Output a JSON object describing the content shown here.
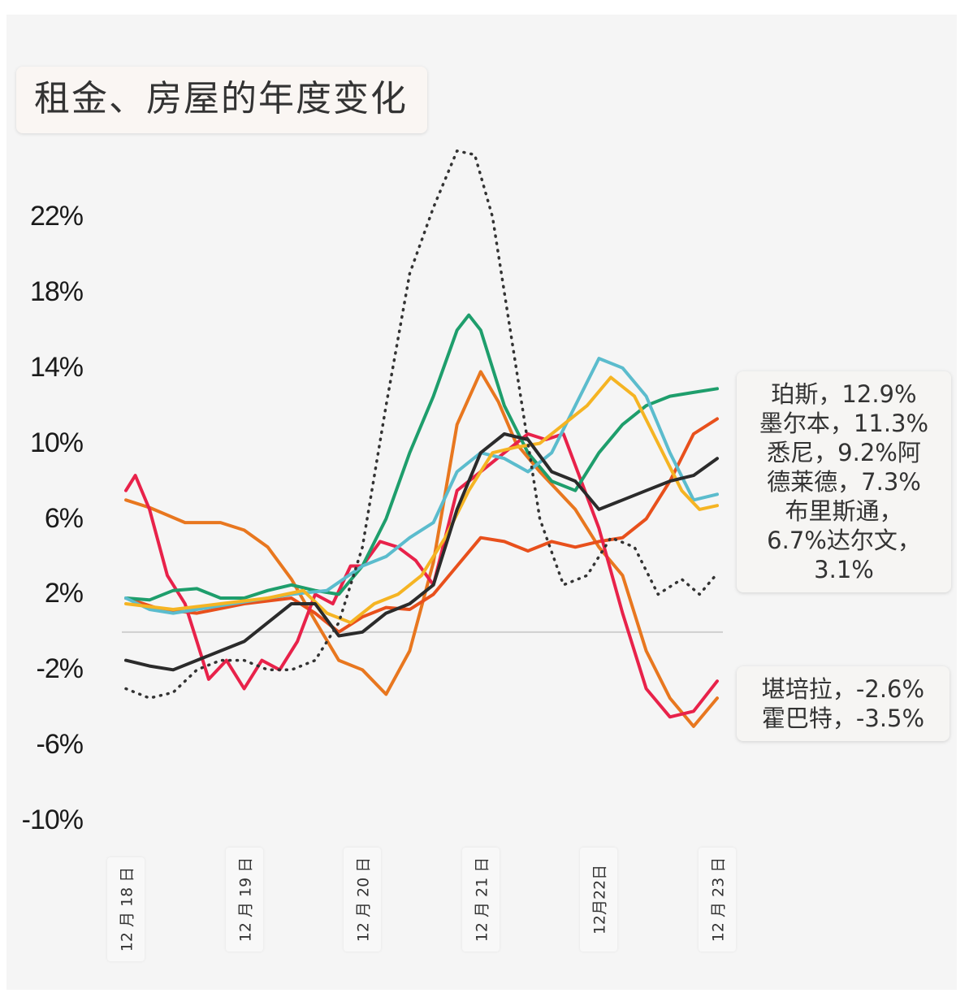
{
  "chart_data": {
    "type": "line",
    "title": "租金、房屋的年度变化",
    "ylabel": "",
    "xlabel": "",
    "ylim": [
      -10,
      26
    ],
    "x_ticks": [
      "12 月 18 日",
      "12 月 19 日",
      "12 月 20 日",
      "12 月 21 日",
      "12月22日",
      "12 月 23 日"
    ],
    "y_ticks": [
      "22%",
      "18%",
      "14%",
      "10%",
      "6%",
      "2%",
      "-2%",
      "-6%",
      "-10%"
    ],
    "y_tick_values": [
      22,
      18,
      14,
      10,
      6,
      2,
      -2,
      -6,
      -10
    ],
    "x_range": [
      2018.0,
      2023.0
    ],
    "grid": false,
    "zero_line": true,
    "series": [
      {
        "color": "#e8771f",
        "style": "solid",
        "points": [
          [
            2018.0,
            7.0
          ],
          [
            2018.2,
            6.6
          ],
          [
            2018.5,
            5.8
          ],
          [
            2018.8,
            5.8
          ],
          [
            2019.0,
            5.4
          ],
          [
            2019.2,
            4.5
          ],
          [
            2019.4,
            2.8
          ],
          [
            2019.6,
            0.6
          ],
          [
            2019.8,
            -1.5
          ],
          [
            2020.0,
            -2.0
          ],
          [
            2020.2,
            -3.3
          ],
          [
            2020.4,
            -1.0
          ],
          [
            2020.6,
            3.7
          ],
          [
            2020.8,
            11.0
          ],
          [
            2021.0,
            13.8
          ],
          [
            2021.15,
            12.2
          ],
          [
            2021.3,
            10.0
          ],
          [
            2021.5,
            8.5
          ],
          [
            2021.8,
            6.5
          ],
          [
            2022.0,
            4.5
          ],
          [
            2022.2,
            3.0
          ],
          [
            2022.4,
            -1.0
          ],
          [
            2022.6,
            -3.5
          ],
          [
            2022.8,
            -5.0
          ],
          [
            2023.0,
            -3.5
          ]
        ]
      },
      {
        "color": "#e8501c",
        "style": "solid",
        "points": [
          [
            2018.0,
            1.8
          ],
          [
            2018.3,
            1.2
          ],
          [
            2018.6,
            1.0
          ],
          [
            2019.0,
            1.5
          ],
          [
            2019.4,
            1.8
          ],
          [
            2019.6,
            1.0
          ],
          [
            2019.8,
            0.0
          ],
          [
            2020.0,
            0.8
          ],
          [
            2020.2,
            1.3
          ],
          [
            2020.4,
            1.2
          ],
          [
            2020.6,
            2.0
          ],
          [
            2020.8,
            3.5
          ],
          [
            2021.0,
            5.0
          ],
          [
            2021.2,
            4.8
          ],
          [
            2021.4,
            4.3
          ],
          [
            2021.6,
            4.8
          ],
          [
            2021.8,
            4.5
          ],
          [
            2022.0,
            4.8
          ],
          [
            2022.2,
            5.0
          ],
          [
            2022.4,
            6.0
          ],
          [
            2022.6,
            8.0
          ],
          [
            2022.8,
            10.5
          ],
          [
            2023.0,
            11.3
          ]
        ]
      },
      {
        "color": "#e8224a",
        "style": "solid",
        "points": [
          [
            2018.0,
            7.5
          ],
          [
            2018.08,
            8.3
          ],
          [
            2018.2,
            6.5
          ],
          [
            2018.35,
            3.0
          ],
          [
            2018.5,
            1.5
          ],
          [
            2018.6,
            -0.5
          ],
          [
            2018.7,
            -2.5
          ],
          [
            2018.85,
            -1.5
          ],
          [
            2019.0,
            -3.0
          ],
          [
            2019.15,
            -1.5
          ],
          [
            2019.3,
            -2.0
          ],
          [
            2019.45,
            -0.5
          ],
          [
            2019.6,
            2.0
          ],
          [
            2019.75,
            1.5
          ],
          [
            2019.9,
            3.5
          ],
          [
            2020.0,
            3.5
          ],
          [
            2020.15,
            4.8
          ],
          [
            2020.3,
            4.5
          ],
          [
            2020.45,
            3.8
          ],
          [
            2020.6,
            2.5
          ],
          [
            2020.8,
            7.5
          ],
          [
            2021.0,
            8.5
          ],
          [
            2021.2,
            9.5
          ],
          [
            2021.4,
            10.5
          ],
          [
            2021.55,
            10.2
          ],
          [
            2021.7,
            10.5
          ],
          [
            2021.85,
            8.0
          ],
          [
            2022.0,
            5.5
          ],
          [
            2022.2,
            1.0
          ],
          [
            2022.4,
            -3.0
          ],
          [
            2022.6,
            -4.5
          ],
          [
            2022.8,
            -4.2
          ],
          [
            2023.0,
            -2.6
          ]
        ]
      },
      {
        "color": "#1e9e6c",
        "style": "solid",
        "points": [
          [
            2018.0,
            1.8
          ],
          [
            2018.2,
            1.7
          ],
          [
            2018.4,
            2.2
          ],
          [
            2018.6,
            2.3
          ],
          [
            2018.8,
            1.8
          ],
          [
            2019.0,
            1.8
          ],
          [
            2019.2,
            2.2
          ],
          [
            2019.4,
            2.5
          ],
          [
            2019.6,
            2.2
          ],
          [
            2019.8,
            2.0
          ],
          [
            2020.0,
            3.5
          ],
          [
            2020.2,
            6.0
          ],
          [
            2020.4,
            9.5
          ],
          [
            2020.6,
            12.5
          ],
          [
            2020.8,
            16.0
          ],
          [
            2020.9,
            16.8
          ],
          [
            2021.0,
            16.0
          ],
          [
            2021.2,
            12.0
          ],
          [
            2021.4,
            9.5
          ],
          [
            2021.6,
            8.0
          ],
          [
            2021.8,
            7.5
          ],
          [
            2022.0,
            9.5
          ],
          [
            2022.2,
            11.0
          ],
          [
            2022.4,
            12.0
          ],
          [
            2022.6,
            12.5
          ],
          [
            2022.8,
            12.7
          ],
          [
            2023.0,
            12.9
          ]
        ]
      },
      {
        "color": "#5bbccd",
        "style": "solid",
        "points": [
          [
            2018.0,
            1.8
          ],
          [
            2018.2,
            1.2
          ],
          [
            2018.4,
            1.0
          ],
          [
            2018.6,
            1.2
          ],
          [
            2019.0,
            1.6
          ],
          [
            2019.4,
            2.0
          ],
          [
            2019.7,
            2.2
          ],
          [
            2020.0,
            3.5
          ],
          [
            2020.2,
            4.0
          ],
          [
            2020.4,
            5.0
          ],
          [
            2020.6,
            5.8
          ],
          [
            2020.8,
            8.5
          ],
          [
            2021.0,
            9.5
          ],
          [
            2021.2,
            9.2
          ],
          [
            2021.4,
            8.5
          ],
          [
            2021.6,
            9.5
          ],
          [
            2021.8,
            12.0
          ],
          [
            2022.0,
            14.5
          ],
          [
            2022.2,
            14.0
          ],
          [
            2022.4,
            12.5
          ],
          [
            2022.6,
            9.5
          ],
          [
            2022.8,
            7.0
          ],
          [
            2023.0,
            7.3
          ]
        ]
      },
      {
        "color": "#f5b423",
        "style": "solid",
        "points": [
          [
            2018.0,
            1.5
          ],
          [
            2018.4,
            1.2
          ],
          [
            2018.8,
            1.5
          ],
          [
            2019.2,
            1.8
          ],
          [
            2019.5,
            2.2
          ],
          [
            2019.7,
            1.0
          ],
          [
            2019.9,
            0.5
          ],
          [
            2020.1,
            1.5
          ],
          [
            2020.3,
            2.0
          ],
          [
            2020.5,
            3.0
          ],
          [
            2020.7,
            5.0
          ],
          [
            2020.9,
            7.5
          ],
          [
            2021.1,
            9.5
          ],
          [
            2021.3,
            9.8
          ],
          [
            2021.5,
            10.0
          ],
          [
            2021.7,
            11.0
          ],
          [
            2021.9,
            12.0
          ],
          [
            2022.1,
            13.5
          ],
          [
            2022.3,
            12.5
          ],
          [
            2022.5,
            10.0
          ],
          [
            2022.7,
            7.5
          ],
          [
            2022.85,
            6.5
          ],
          [
            2023.0,
            6.7
          ]
        ]
      },
      {
        "color": "#2b2b2b",
        "style": "solid",
        "points": [
          [
            2018.0,
            -1.5
          ],
          [
            2018.2,
            -1.8
          ],
          [
            2018.4,
            -2.0
          ],
          [
            2018.6,
            -1.5
          ],
          [
            2018.8,
            -1.0
          ],
          [
            2019.0,
            -0.5
          ],
          [
            2019.2,
            0.5
          ],
          [
            2019.4,
            1.5
          ],
          [
            2019.6,
            1.5
          ],
          [
            2019.8,
            -0.2
          ],
          [
            2020.0,
            0.0
          ],
          [
            2020.2,
            1.0
          ],
          [
            2020.4,
            1.5
          ],
          [
            2020.6,
            2.5
          ],
          [
            2020.8,
            6.5
          ],
          [
            2021.0,
            9.5
          ],
          [
            2021.2,
            10.5
          ],
          [
            2021.4,
            10.2
          ],
          [
            2021.6,
            8.5
          ],
          [
            2021.8,
            8.0
          ],
          [
            2022.0,
            6.5
          ],
          [
            2022.2,
            7.0
          ],
          [
            2022.4,
            7.5
          ],
          [
            2022.6,
            8.0
          ],
          [
            2022.8,
            8.3
          ],
          [
            2023.0,
            9.2
          ]
        ]
      },
      {
        "color": "#333333",
        "style": "dotted",
        "points": [
          [
            2018.0,
            -3.0
          ],
          [
            2018.2,
            -3.5
          ],
          [
            2018.4,
            -3.2
          ],
          [
            2018.6,
            -2.0
          ],
          [
            2018.8,
            -1.5
          ],
          [
            2019.0,
            -1.5
          ],
          [
            2019.2,
            -2.0
          ],
          [
            2019.4,
            -2.0
          ],
          [
            2019.6,
            -1.5
          ],
          [
            2019.8,
            0.5
          ],
          [
            2020.0,
            4.5
          ],
          [
            2020.2,
            12.0
          ],
          [
            2020.4,
            19.0
          ],
          [
            2020.6,
            22.5
          ],
          [
            2020.8,
            25.5
          ],
          [
            2020.95,
            25.3
          ],
          [
            2021.1,
            22.0
          ],
          [
            2021.3,
            14.0
          ],
          [
            2021.5,
            6.0
          ],
          [
            2021.7,
            2.5
          ],
          [
            2021.9,
            3.0
          ],
          [
            2022.1,
            5.0
          ],
          [
            2022.3,
            4.5
          ],
          [
            2022.5,
            2.0
          ],
          [
            2022.7,
            2.8
          ],
          [
            2022.85,
            2.0
          ],
          [
            2023.0,
            3.1
          ]
        ]
      }
    ],
    "callouts": [
      {
        "lines": [
          "珀斯，12.9%",
          "墨尔本，11.3%",
          "悉尼，9.2%阿",
          "德莱德，7.3%",
          "布里斯通，",
          "6.7%达尔文，",
          "3.1%"
        ]
      },
      {
        "lines": [
          "堪培拉，-2.6%",
          "霍巴特，-3.5%"
        ]
      }
    ]
  }
}
